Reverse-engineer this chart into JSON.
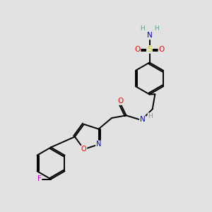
{
  "bg_color": "#e2e2e2",
  "atom_colors": {
    "C": "#000000",
    "N": "#0000cc",
    "O": "#ff0000",
    "S": "#cccc00",
    "F": "#cc00cc",
    "H": "#6a9a9a"
  },
  "bond_color": "#000000",
  "bond_width": 1.4,
  "dbo": 0.07,
  "figsize": [
    3.0,
    3.0
  ],
  "dpi": 100,
  "xlim": [
    0,
    10
  ],
  "ylim": [
    0,
    10
  ]
}
